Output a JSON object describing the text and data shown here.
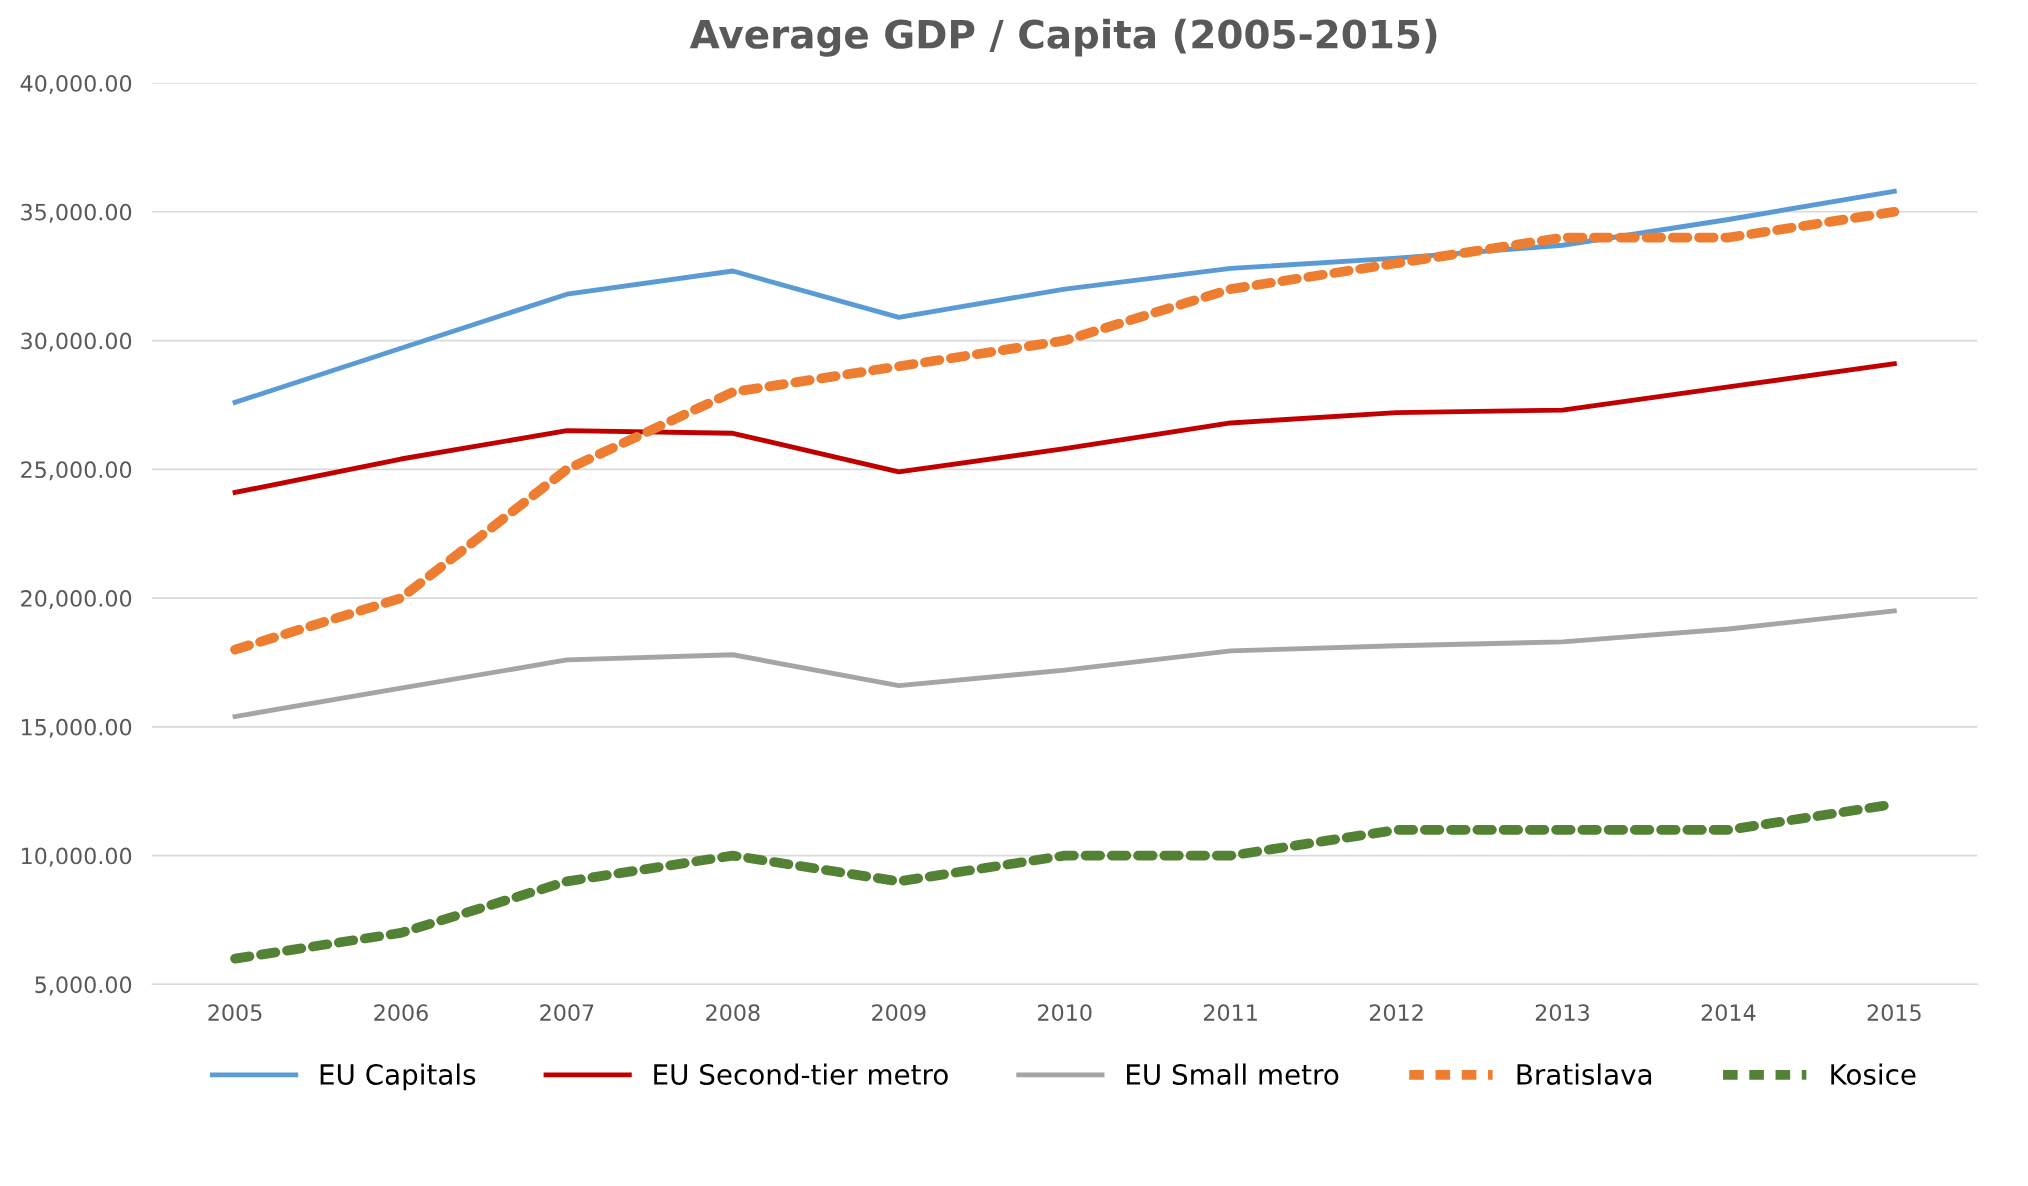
{
  "chart_data": {
    "type": "line",
    "title": "Average GDP / Capita (2005-2015)",
    "categories": [
      "2005",
      "2006",
      "2007",
      "2008",
      "2009",
      "2010",
      "2011",
      "2012",
      "2013",
      "2014",
      "2015"
    ],
    "series": [
      {
        "name": "EU Capitals",
        "color": "#5b9bd5",
        "line_style": "solid",
        "values": [
          27600,
          29700,
          31800,
          32700,
          30900,
          32000,
          32800,
          33200,
          33700,
          34700,
          35800
        ]
      },
      {
        "name": "EU Second-tier metro",
        "color": "#c00000",
        "line_style": "solid",
        "values": [
          24100,
          25400,
          26500,
          26400,
          24900,
          25800,
          26800,
          27200,
          27300,
          28200,
          29100
        ]
      },
      {
        "name": "EU Small metro",
        "color": "#a5a5a5",
        "line_style": "solid",
        "values": [
          15400,
          16500,
          17600,
          17800,
          16600,
          17200,
          17950,
          18150,
          18300,
          18800,
          19500
        ]
      },
      {
        "name": "Bratislava",
        "color": "#ed7d31",
        "line_style": "dashed",
        "values": [
          18000,
          20000,
          25000,
          28000,
          29000,
          30000,
          32000,
          33000,
          34000,
          34000,
          35000
        ]
      },
      {
        "name": "Kosice",
        "color": "#548235",
        "line_style": "dashed",
        "values": [
          6000,
          7000,
          9000,
          10000,
          9000,
          10000,
          10000,
          11000,
          11000,
          11000,
          12000
        ]
      }
    ],
    "ylim": [
      5000,
      40000
    ],
    "yticks": [
      {
        "value": 5000,
        "label": "5,000.00"
      },
      {
        "value": 10000,
        "label": "10,000.00"
      },
      {
        "value": 15000,
        "label": "15,000.00"
      },
      {
        "value": 20000,
        "label": "20,000.00"
      },
      {
        "value": 25000,
        "label": "25,000.00"
      },
      {
        "value": 30000,
        "label": "30,000.00"
      },
      {
        "value": 35000,
        "label": "35,000.00"
      },
      {
        "value": 40000,
        "label": "40,000.00"
      }
    ],
    "grid": "y",
    "legend": "bottom",
    "marker": "none"
  }
}
